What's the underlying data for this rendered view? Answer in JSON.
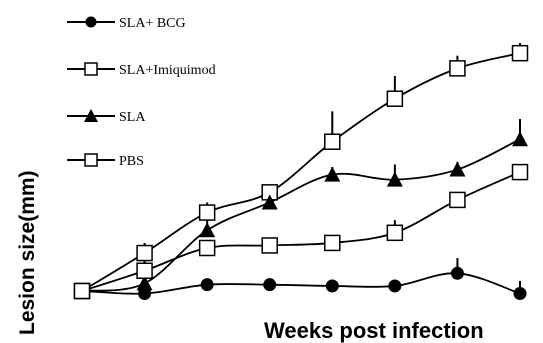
{
  "chart_data": {
    "type": "line",
    "title": "",
    "xlabel": "Weeks post infection",
    "ylabel": "Lesion size(mm)",
    "x": [
      0,
      1,
      2,
      3,
      4,
      5,
      6,
      7
    ],
    "xlim": [
      0,
      7
    ],
    "ylim": [
      0,
      10
    ],
    "grid": false,
    "legend_position": "top-left",
    "series": [
      {
        "name": "SLA+ BCG",
        "marker": "circle-filled",
        "values": [
          0.0,
          -0.1,
          0.25,
          0.25,
          0.2,
          0.2,
          0.7,
          -0.1
        ],
        "errors": [
          0.0,
          0.2,
          0.15,
          0.1,
          0.1,
          0.2,
          0.6,
          0.5
        ]
      },
      {
        "name": "SLA+Imiquimod",
        "marker": "square-open",
        "values": [
          0.0,
          1.5,
          3.1,
          3.9,
          5.9,
          7.6,
          8.8,
          9.4
        ],
        "errors": [
          0.0,
          0.4,
          0.4,
          0.3,
          1.2,
          0.9,
          0.5,
          0.4
        ]
      },
      {
        "name": "SLA",
        "marker": "triangle-filled",
        "values": [
          0.0,
          0.3,
          2.4,
          3.5,
          4.6,
          4.4,
          4.8,
          6.0
        ],
        "errors": [
          0.0,
          0.3,
          0.5,
          0.3,
          0.3,
          0.6,
          0.3,
          0.8
        ]
      },
      {
        "name": "PBS",
        "marker": "square-open",
        "values": [
          0.0,
          0.8,
          1.7,
          1.8,
          1.9,
          2.3,
          3.6,
          4.7
        ],
        "errors": [
          0.0,
          0.4,
          0.3,
          0.2,
          0.2,
          0.5,
          0.3,
          0.3
        ]
      }
    ]
  }
}
